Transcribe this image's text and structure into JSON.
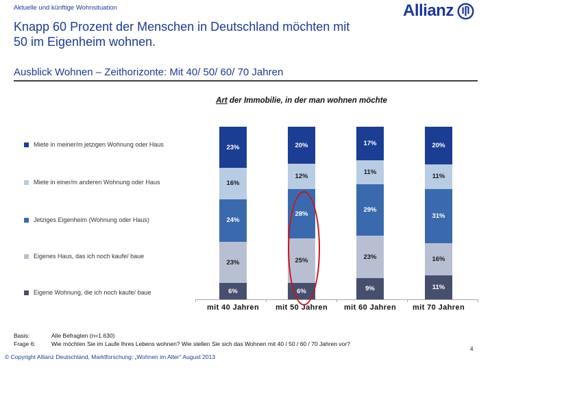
{
  "page": {
    "eyebrow": "Aktuelle und künftige Wohnsituation",
    "title_line1": "Knapp 60 Prozent der Menschen in Deutschland möchten mit",
    "title_line2": "50 im Eigenheim wohnen.",
    "subtitle": "Ausblick Wohnen – Zeithorizonte: Mit 40/ 50/ 60/ 70 Jahren",
    "page_number": "4",
    "copyright": "© Copyright Allianz Deutschland, Marktforschung: „Wohnen im Alter“ August 2013"
  },
  "logo": {
    "wordmark": "Allianz",
    "emblem_icon": "allianz-emblem-icon",
    "brand_color": "#1e3796"
  },
  "chart_data": {
    "type": "bar",
    "stacked": true,
    "title": "Art der Immobilie, in der man wohnen möchte",
    "title_underlined_word": "Art",
    "title_rest": " der Immobilie, in der man wohnen möchte",
    "categories": [
      "mit 40 Jahren",
      "mit 50 Jahren",
      "mit 60 Jahren",
      "mit 70 Jahren"
    ],
    "series": [
      {
        "name": "Miete in meiner/m jetzigen Wohnung oder Haus",
        "color": "#1c3d94",
        "text_color": "#ffffff",
        "values": [
          23,
          20,
          17,
          20
        ]
      },
      {
        "name": "Miete in einer/m anderen Wohnung oder Haus",
        "color": "#b8cce4",
        "text_color": "#1a1a1a",
        "values": [
          16,
          12,
          11,
          11
        ]
      },
      {
        "name": "Jetziges Eigenheim (Wohnung oder Haus)",
        "color": "#3a6aad",
        "text_color": "#ffffff",
        "values": [
          24,
          28,
          29,
          31
        ]
      },
      {
        "name": "Eigenes Haus, das ich noch kaufe/ baue",
        "color": "#b9bfd2",
        "text_color": "#1a1a1a",
        "values": [
          23,
          25,
          23,
          16
        ]
      },
      {
        "name": "Eigene Wohnung, die ich noch kaufe/ baue",
        "color": "#474f6e",
        "text_color": "#ffffff",
        "values": [
          6,
          6,
          9,
          11
        ]
      }
    ],
    "value_suffix": "%",
    "ylim": [
      0,
      100
    ],
    "grid": false,
    "legend_position": "left",
    "annotation": {
      "shape": "ellipse",
      "color": "#d01218",
      "category": "mit 50 Jahren",
      "circled_values": [
        "28%",
        "25%",
        "6%"
      ]
    }
  },
  "footer": {
    "basis_label": "Basis:",
    "basis_value": "Alle Befragten (n=1.630)",
    "frage_label": "Frage 6:",
    "frage_value": "Wie möchten Sie im Laufe Ihres Lebens wohnen? Wie stellen Sie sich das Wohnen mit 40 / 50 / 60 / 70 Jahren vor?"
  }
}
